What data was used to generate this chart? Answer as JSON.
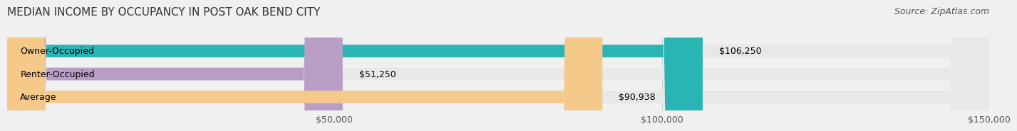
{
  "title": "MEDIAN INCOME BY OCCUPANCY IN POST OAK BEND CITY",
  "source": "Source: ZipAtlas.com",
  "categories": [
    "Owner-Occupied",
    "Renter-Occupied",
    "Average"
  ],
  "values": [
    106250,
    51250,
    90938
  ],
  "bar_colors": [
    "#2ab5b5",
    "#b89ec4",
    "#f5c98a"
  ],
  "bar_labels": [
    "$106,250",
    "$51,250",
    "$90,938"
  ],
  "xlim": [
    0,
    150000
  ],
  "xticks": [
    0,
    50000,
    100000,
    150000
  ],
  "xtick_labels": [
    "$50,000",
    "$100,000",
    "$150,000"
  ],
  "background_color": "#f0f0f0",
  "bar_bg_color": "#e8e8e8",
  "title_fontsize": 11,
  "source_fontsize": 9,
  "label_fontsize": 9,
  "tick_fontsize": 9
}
